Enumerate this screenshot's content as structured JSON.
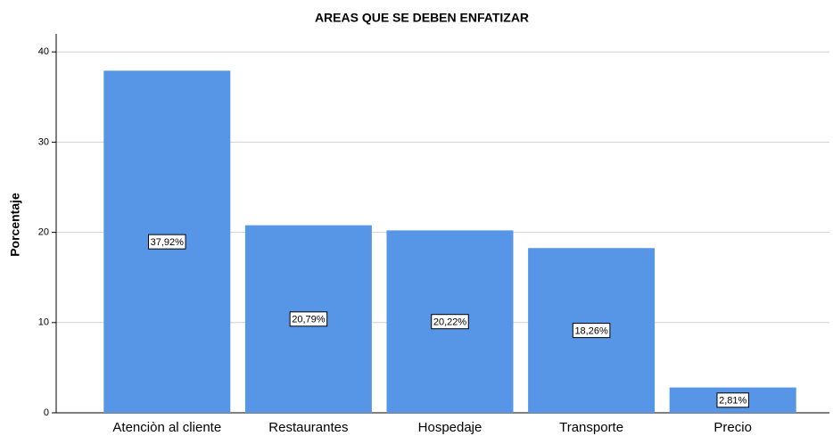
{
  "chart_data": {
    "type": "bar",
    "title": "AREAS QUE SE DEBEN ENFATIZAR",
    "ylabel": "Porcentaje",
    "categories": [
      "Atenciòn al cliente",
      "Restaurantes",
      "Hospedaje",
      "Transporte",
      "Precio"
    ],
    "values": [
      37.92,
      20.79,
      20.22,
      18.26,
      2.81
    ],
    "value_labels": [
      "37,92%",
      "20,79%",
      "20,22%",
      "18,26%",
      "2,81%"
    ],
    "color": "#5796e6",
    "ylim": [
      0,
      42
    ],
    "yticks": [
      0,
      10,
      20,
      30,
      40
    ],
    "grid": true
  }
}
